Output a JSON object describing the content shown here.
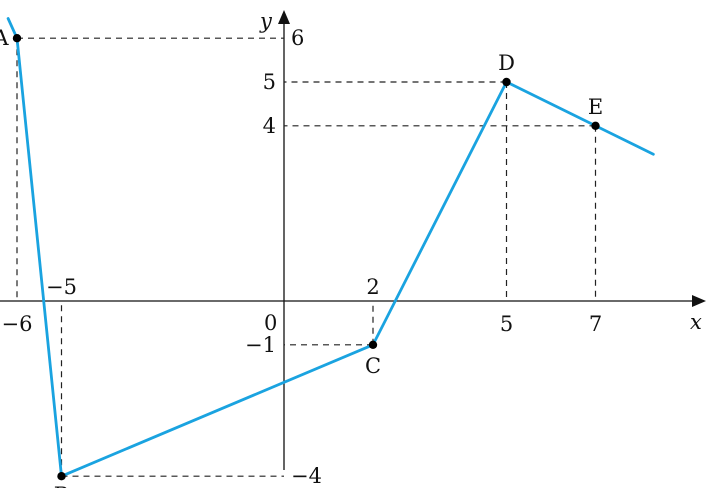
{
  "axes": {
    "x_name": "x",
    "y_name": "y",
    "origin_label": "0",
    "x_ticks": [
      {
        "value": -6,
        "label": "−6",
        "side": "below"
      },
      {
        "value": -5,
        "label": "−5",
        "side": "above"
      },
      {
        "value": 2,
        "label": "2",
        "side": "above"
      },
      {
        "value": 5,
        "label": "5",
        "side": "below"
      },
      {
        "value": 7,
        "label": "7",
        "side": "below"
      }
    ],
    "y_ticks": [
      {
        "value": 6,
        "label": "6",
        "side": "right"
      },
      {
        "value": 5,
        "label": "5",
        "side": "left"
      },
      {
        "value": 4,
        "label": "4",
        "side": "left"
      },
      {
        "value": -1,
        "label": "−1",
        "side": "left"
      },
      {
        "value": -4,
        "label": "−4",
        "side": "right"
      }
    ]
  },
  "points": [
    {
      "name": "A",
      "x": -6,
      "y": 6
    },
    {
      "name": "B",
      "x": -5,
      "y": -4
    },
    {
      "name": "C",
      "x": 2,
      "y": -1
    },
    {
      "name": "D",
      "x": 5,
      "y": 5
    },
    {
      "name": "E",
      "x": 7,
      "y": 4
    }
  ],
  "curve": [
    [
      -6.2,
      6.45
    ],
    [
      -6,
      6
    ],
    [
      -5,
      -4
    ],
    [
      2,
      -1
    ],
    [
      5,
      5
    ],
    [
      7,
      4
    ],
    [
      8.3,
      3.35
    ]
  ],
  "colors": {
    "curve": "#1aa3e0",
    "axis": "#111111",
    "guide": "#222222"
  }
}
